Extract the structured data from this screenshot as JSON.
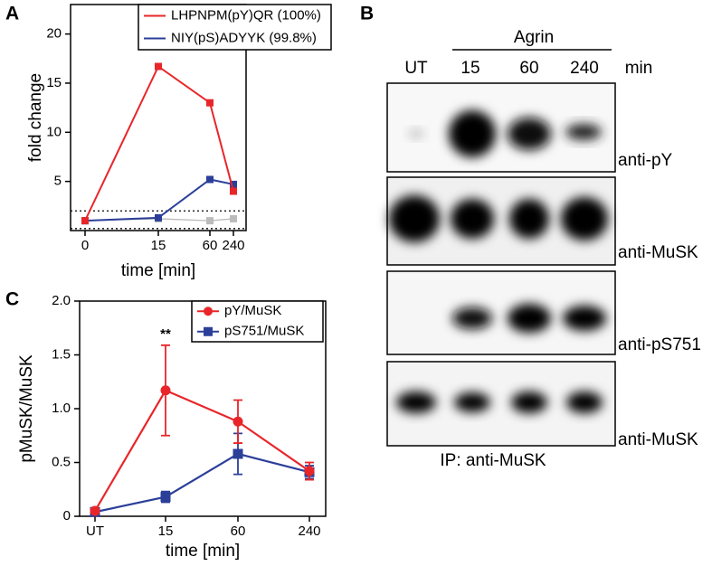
{
  "panel_labels": [
    "A",
    "B",
    "C"
  ],
  "chart_data": [
    {
      "type": "line",
      "xlabel": "time [min]",
      "ylabel": "fold change",
      "categories": [
        "0",
        "15",
        "60",
        "240"
      ],
      "ylim": [
        0,
        23
      ],
      "yticks": [
        5,
        10,
        15,
        20
      ],
      "hlines": [
        2,
        0.2
      ],
      "series": [
        {
          "name": "LHPNPM(pY)QR (100%)",
          "color": "#e8262a",
          "marker": "square",
          "values": [
            1.0,
            16.7,
            13.0,
            4.0
          ]
        },
        {
          "name": "NIY(pS)ADYYK (99.8%)",
          "color": "#2b3f99",
          "marker": "square",
          "values": [
            1.0,
            1.3,
            5.2,
            4.7
          ]
        },
        {
          "color": "#bbbbbb",
          "marker": "square",
          "values": [
            1.0,
            1.2,
            1.0,
            1.2
          ]
        }
      ]
    },
    {
      "type": "line",
      "xlabel": "time [min]",
      "ylabel": "pMuSK/MuSK",
      "categories": [
        "UT",
        "15",
        "60",
        "240"
      ],
      "ylim": [
        0,
        2.0
      ],
      "yticks": [
        0,
        0.5,
        {
          "value": 1.0,
          "label": "1.0"
        },
        1.5,
        {
          "value": 2.0,
          "label": "2.0"
        }
      ],
      "annotations": [
        "**"
      ],
      "series": [
        {
          "name": "pY/MuSK",
          "color": "#e8262a",
          "marker": "circle",
          "values": [
            0.05,
            1.17,
            0.88,
            0.42
          ],
          "errors": [
            0.02,
            0.42,
            0.2,
            0.08
          ]
        },
        {
          "name": "pS751/MuSK",
          "color": "#2b3f99",
          "marker": "square",
          "values": [
            0.04,
            0.18,
            0.58,
            0.41
          ],
          "errors": [
            0.01,
            0.05,
            0.19,
            0.06
          ]
        }
      ]
    }
  ],
  "blot": {
    "group": "Agrin",
    "lanes": [
      "UT",
      "15",
      "60",
      "240"
    ],
    "unit": "min",
    "rows": [
      "anti-pY",
      "anti-MuSK",
      "anti-pS751",
      "anti-MuSK"
    ],
    "footer": "IP: anti-MuSK"
  }
}
